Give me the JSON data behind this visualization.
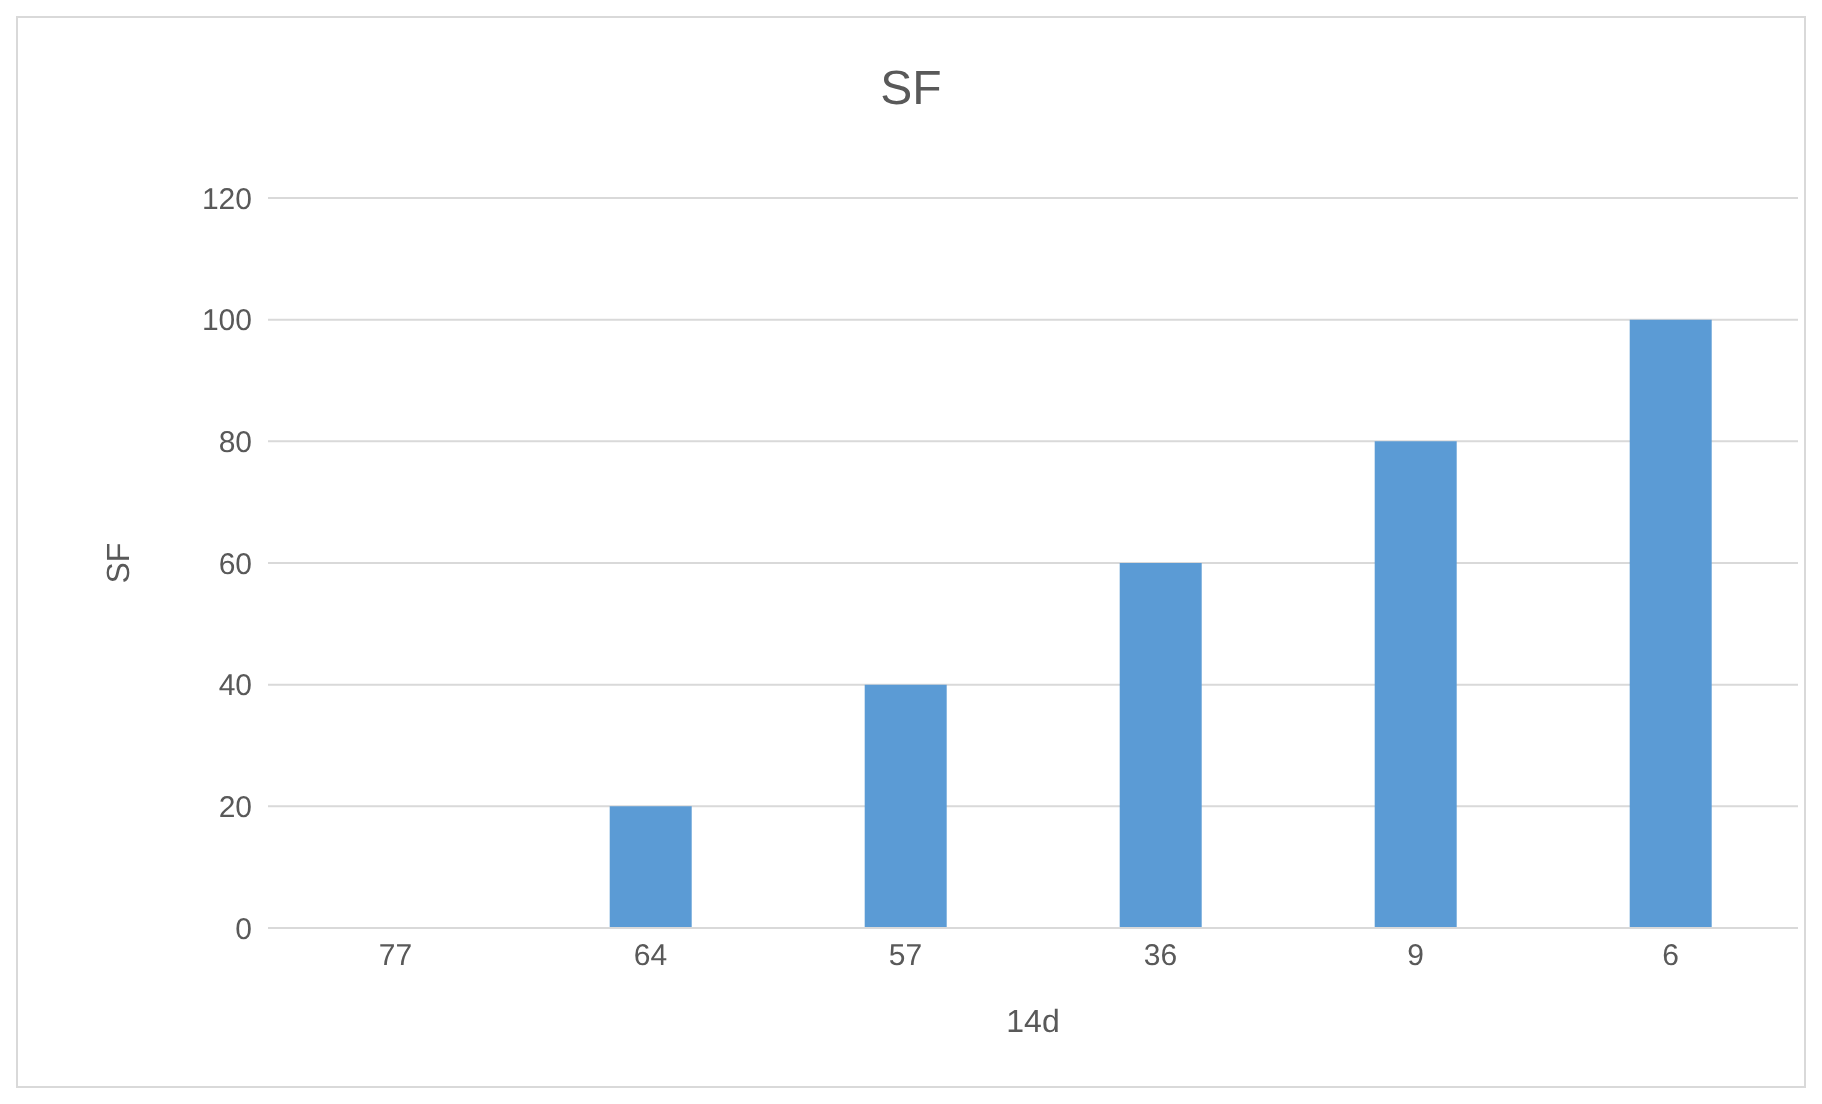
{
  "chart_data": {
    "type": "bar",
    "title": "SF",
    "xlabel": "14d",
    "ylabel": "SF",
    "categories": [
      "77",
      "64",
      "57",
      "36",
      "9",
      "6"
    ],
    "values": [
      0,
      20,
      40,
      60,
      80,
      100
    ],
    "color": "#5b9bd5",
    "ylim": [
      0,
      120
    ],
    "yticks": [
      0,
      20,
      40,
      60,
      80,
      100,
      120
    ],
    "grid": "y"
  }
}
